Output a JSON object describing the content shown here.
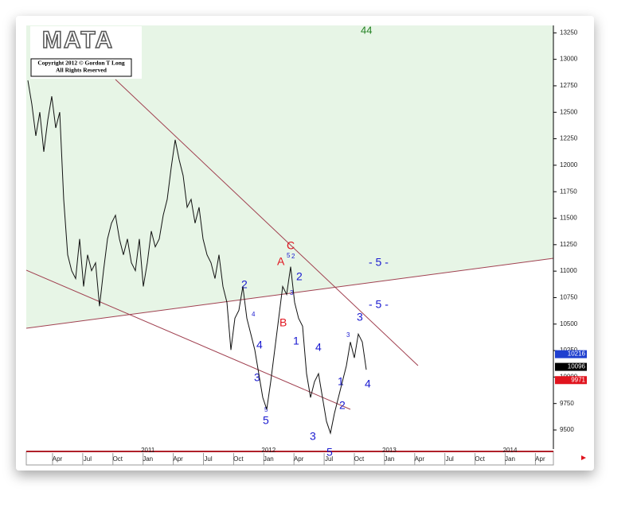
{
  "logo": "MATA",
  "copyright": [
    "Copyright 2012 © Gordon T Long",
    "All Rights Reserved"
  ],
  "chart_data": {
    "type": "line",
    "series": [
      {
        "color": "#111111",
        "values": [
          12801,
          12576,
          12277,
          12501,
          12127,
          12426,
          12651,
          12352,
          12501,
          11678,
          11154,
          11004,
          10930,
          11304,
          10855,
          11154,
          11004,
          11079,
          10668,
          11004,
          11304,
          11453,
          11528,
          11304,
          11154,
          11304,
          11079,
          11004,
          11304,
          10855,
          11079,
          11378,
          11229,
          11304,
          11528,
          11678,
          11977,
          12240,
          12052,
          11902,
          11603,
          11678,
          11453,
          11603,
          11304,
          11154,
          11079,
          10930,
          11154,
          10855,
          10705,
          10256,
          10555,
          10630,
          10855,
          10555,
          10406,
          10256,
          10032,
          9807,
          9695,
          9957,
          10256,
          10555,
          10855,
          10780,
          11042,
          10705,
          10555,
          10480,
          10032,
          9807,
          9957,
          10032,
          9807,
          9582,
          9470,
          9657,
          9807,
          9957,
          10106,
          10331,
          10181,
          10406,
          10331,
          10069
        ]
      }
    ],
    "ylim": [
      9320,
      13320
    ],
    "yticks": [
      9500,
      9750,
      10000,
      10250,
      10500,
      10750,
      11000,
      11250,
      11500,
      11750,
      12000,
      12250,
      12500,
      12750,
      13000,
      13250
    ],
    "xticks": [
      "Apr",
      "Jul",
      "Oct",
      "Jan",
      "Apr",
      "Jul",
      "Oct",
      "Jan",
      "Apr",
      "Jul",
      "Oct",
      "Jan",
      "Apr",
      "Jul",
      "Oct",
      "Jan",
      "Apr"
    ],
    "year_labels": [
      "2011",
      "2012",
      "2013",
      "2014"
    ],
    "price_markers": [
      {
        "value": 10216,
        "color": "#1f3fcf"
      },
      {
        "value": 10096,
        "color": "#000000"
      },
      {
        "value": 9971,
        "color": "#e0141e"
      }
    ],
    "annotations": [
      "44",
      "- 5 -",
      "- 5 -",
      "C",
      "A",
      "B",
      "2",
      "3",
      "4",
      "5",
      "1",
      "3",
      "5",
      "3",
      "2",
      "4",
      "1",
      "2",
      "3",
      "5",
      "4",
      "5",
      "2",
      "3",
      "4"
    ]
  }
}
